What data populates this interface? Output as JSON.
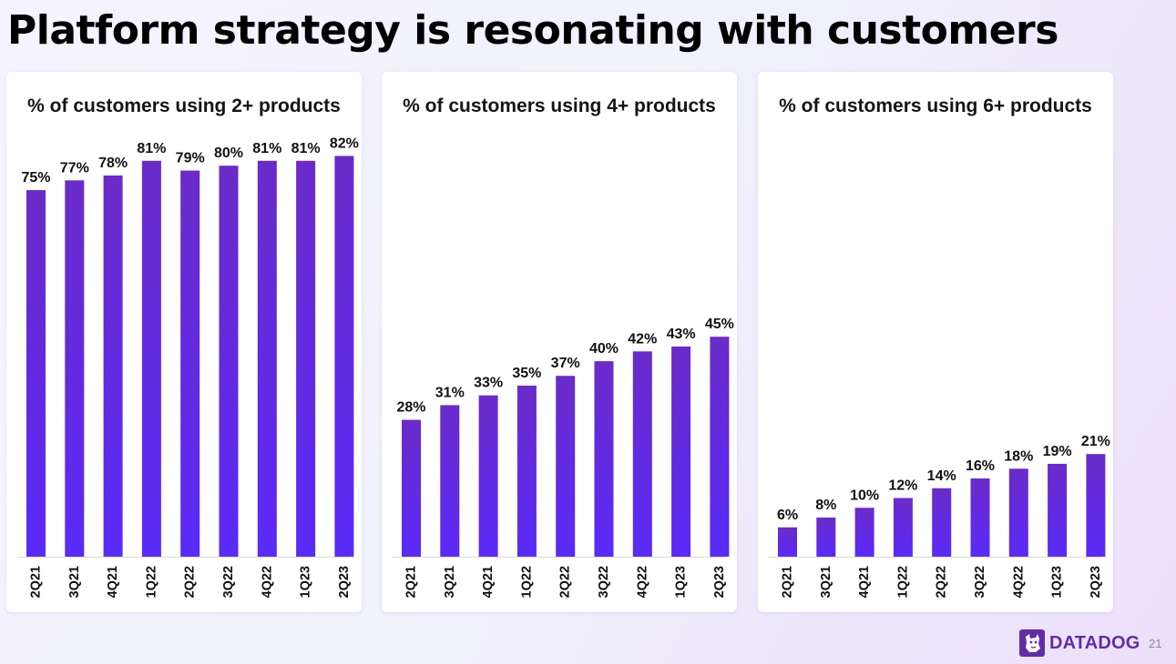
{
  "slide": {
    "title": "Platform strategy is resonating with customers",
    "page_number": "21",
    "brand": "DATADOG"
  },
  "colors": {
    "bar_top": "#6a2bc9",
    "bar_bottom": "#5a2af8",
    "brand": "#632ca6"
  },
  "chart_data": [
    {
      "type": "bar",
      "title": "% of customers using 2+ products",
      "categories": [
        "2Q21",
        "3Q21",
        "4Q21",
        "1Q22",
        "2Q22",
        "3Q22",
        "4Q22",
        "1Q23",
        "2Q23"
      ],
      "values": [
        75,
        77,
        78,
        81,
        79,
        80,
        81,
        81,
        82
      ],
      "labels": [
        "75%",
        "77%",
        "78%",
        "81%",
        "79%",
        "80%",
        "81%",
        "81%",
        "82%"
      ],
      "xlabel": "",
      "ylabel": "",
      "ylim": [
        0,
        87
      ],
      "grid": false
    },
    {
      "type": "bar",
      "title": "% of customers using 4+ products",
      "categories": [
        "2Q21",
        "3Q21",
        "4Q21",
        "1Q22",
        "2Q22",
        "3Q22",
        "4Q22",
        "1Q23",
        "2Q23"
      ],
      "values": [
        28,
        31,
        33,
        35,
        37,
        40,
        42,
        43,
        45
      ],
      "labels": [
        "28%",
        "31%",
        "33%",
        "35%",
        "37%",
        "40%",
        "42%",
        "43%",
        "45%"
      ],
      "xlabel": "",
      "ylabel": "",
      "ylim": [
        0,
        87
      ],
      "grid": false
    },
    {
      "type": "bar",
      "title": "% of customers using 6+ products",
      "categories": [
        "2Q21",
        "3Q21",
        "4Q21",
        "1Q22",
        "2Q22",
        "3Q22",
        "4Q22",
        "1Q23",
        "2Q23"
      ],
      "values": [
        6,
        8,
        10,
        12,
        14,
        16,
        18,
        19,
        21
      ],
      "labels": [
        "6%",
        "8%",
        "10%",
        "12%",
        "14%",
        "16%",
        "18%",
        "19%",
        "21%"
      ],
      "xlabel": "",
      "ylabel": "",
      "ylim": [
        0,
        87
      ],
      "grid": false
    }
  ]
}
